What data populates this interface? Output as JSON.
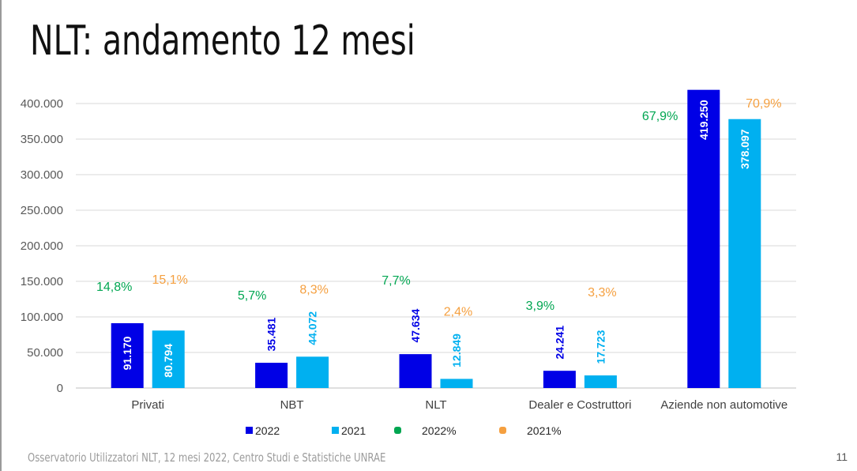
{
  "slide": {
    "title": "NLT: andamento 12 mesi",
    "footer": "Osservatorio Utilizzatori NLT, 12 mesi 2022, Centro Studi e Statistiche UNRAE",
    "page_number": "11"
  },
  "chart_data": {
    "type": "bar",
    "title": "",
    "xlabel": "",
    "ylabel": "",
    "ylim": [
      0,
      420000
    ],
    "yticks": [
      0,
      50000,
      100000,
      150000,
      200000,
      250000,
      300000,
      350000,
      400000
    ],
    "ytick_labels": [
      "0",
      "50.000",
      "100.000",
      "150.000",
      "200.000",
      "250.000",
      "300.000",
      "350.000",
      "400.000"
    ],
    "grid": true,
    "legend_position": "bottom",
    "categories": [
      "Privati",
      "NBT",
      "NLT",
      "Dealer e Costruttori",
      "Aziende non automotive"
    ],
    "series": [
      {
        "name": "2022",
        "color": "#0000e6",
        "label_color": "#ffffff",
        "values": [
          91170,
          35481,
          47634,
          24241,
          419250
        ],
        "labels": [
          "91.170",
          "35.481",
          "47.634",
          "24.241",
          "419.250"
        ]
      },
      {
        "name": "2021",
        "color": "#00b0f0",
        "label_color": "#ffffff",
        "values": [
          80794,
          44072,
          12849,
          17723,
          378097
        ],
        "labels": [
          "80.794",
          "44.072",
          "12.849",
          "17.723",
          "378.097"
        ]
      }
    ],
    "share_series": [
      {
        "name": "2022%",
        "color": "#00a651",
        "values": [
          14.8,
          5.7,
          7.7,
          3.9,
          67.9
        ],
        "labels": [
          "14,8%",
          "5,7%",
          "7,7%",
          "3,9%",
          "67,9%"
        ]
      },
      {
        "name": "2021%",
        "color": "#f5a040",
        "values": [
          15.1,
          8.3,
          2.4,
          3.3,
          70.9
        ],
        "labels": [
          "15,1%",
          "8,3%",
          "2,4%",
          "3,3%",
          "70,9%"
        ]
      }
    ]
  }
}
